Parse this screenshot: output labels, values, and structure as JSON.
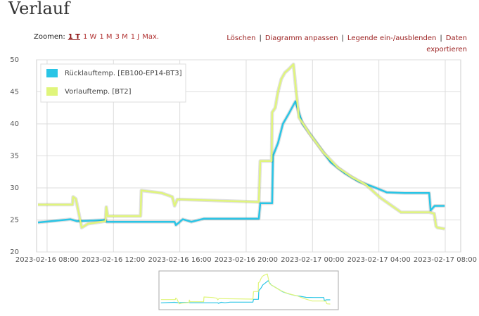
{
  "page": {
    "title": "Verlauf",
    "zoom_label": "Zoomen:",
    "zoom_options": [
      "1 T",
      "1 W",
      "1 M",
      "3 M",
      "1 J",
      "Max."
    ],
    "actions": [
      "Löschen",
      "Diagramm anpassen",
      "Legende ein-/ausblenden",
      "Daten exportieren"
    ],
    "separator": "|"
  },
  "chart_data": {
    "type": "line",
    "legend": "upper left",
    "grid": true,
    "xlim": [
      "2023-02-16 07:22",
      "2023-02-17 08:56"
    ],
    "xticks": [
      "2023-02-16 08:00",
      "2023-02-16 12:00",
      "2023-02-16 16:00",
      "2023-02-16 20:00",
      "2023-02-17 00:00",
      "2023-02-17 04:00",
      "2023-02-17 08:00"
    ],
    "ylim": [
      20,
      50
    ],
    "yticks": [
      20,
      25,
      30,
      35,
      40,
      45,
      50
    ],
    "series": [
      {
        "name": "Rücklauftemp. [EB100-EP14-BT3]",
        "color": "#29c5e6",
        "x": [
          "2023-02-16 07:27",
          "2023-02-16 09:24",
          "2023-02-16 09:49",
          "2023-02-16 11:31",
          "2023-02-16 11:36",
          "2023-02-16 15:41",
          "2023-02-16 15:46",
          "2023-02-16 16:11",
          "2023-02-16 16:42",
          "2023-02-16 17:28",
          "2023-02-16 20:46",
          "2023-02-16 20:51",
          "2023-02-16 21:34",
          "2023-02-16 21:37",
          "2023-02-16 21:55",
          "2023-02-16 22:13",
          "2023-02-16 22:33",
          "2023-02-16 22:58",
          "2023-02-16 23:24",
          "2023-02-17 00:15",
          "2023-02-17 01:06",
          "2023-02-17 01:57",
          "2023-02-17 02:47",
          "2023-02-17 03:38",
          "2023-02-17 04:29",
          "2023-02-17 05:33",
          "2023-02-17 07:02",
          "2023-02-17 07:07",
          "2023-02-17 07:22",
          "2023-02-17 07:58"
        ],
        "values": [
          24.6,
          25.1,
          24.8,
          25.0,
          24.7,
          24.7,
          24.2,
          25.1,
          24.7,
          25.2,
          25.2,
          27.6,
          27.6,
          35,
          37,
          40,
          41.5,
          43.5,
          40,
          37,
          34,
          32.3,
          31,
          30.2,
          29.3,
          29.2,
          29.2,
          26.5,
          27.2,
          27.2
        ]
      },
      {
        "name": "Vorlauftemp. [BT2]",
        "color": "#e0f57b",
        "x": [
          "2023-02-16 07:27",
          "2023-02-16 09:32",
          "2023-02-16 09:34",
          "2023-02-16 09:44",
          "2023-02-16 09:55",
          "2023-02-16 10:05",
          "2023-02-16 10:28",
          "2023-02-16 11:31",
          "2023-02-16 11:34",
          "2023-02-16 11:39",
          "2023-02-16 13:38",
          "2023-02-16 13:41",
          "2023-02-16 14:55",
          "2023-02-16 15:33",
          "2023-02-16 15:41",
          "2023-02-16 15:51",
          "2023-02-16 16:06",
          "2023-02-16 20:46",
          "2023-02-16 20:51",
          "2023-02-16 21:32",
          "2023-02-16 21:34",
          "2023-02-16 21:45",
          "2023-02-16 21:55",
          "2023-02-16 22:07",
          "2023-02-16 22:20",
          "2023-02-16 22:33",
          "2023-02-16 22:51",
          "2023-02-16 23:01",
          "2023-02-16 23:11",
          "2023-02-16 23:49",
          "2023-02-17 00:40",
          "2023-02-17 01:31",
          "2023-02-17 02:22",
          "2023-02-17 03:13",
          "2023-02-17 04:04",
          "2023-02-17 05:20",
          "2023-02-17 07:02",
          "2023-02-17 07:20",
          "2023-02-17 07:27",
          "2023-02-17 07:32",
          "2023-02-17 07:58"
        ],
        "values": [
          27.4,
          27.4,
          28.6,
          28.3,
          26,
          23.8,
          24.4,
          24.8,
          27,
          25.6,
          25.6,
          29.6,
          29.2,
          28.6,
          27.2,
          28.2,
          28.2,
          27.8,
          34.2,
          34.2,
          41.8,
          42.5,
          45,
          47,
          48,
          48.5,
          49.3,
          45,
          41,
          38.5,
          35.5,
          33.2,
          31.7,
          30.5,
          28.5,
          26.2,
          26.2,
          26,
          24,
          23.8,
          23.6
        ]
      }
    ]
  }
}
